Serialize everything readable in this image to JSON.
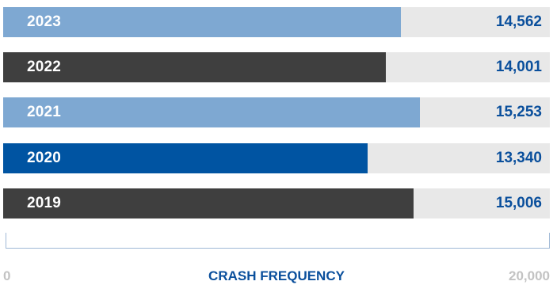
{
  "chart_data": {
    "type": "bar",
    "orientation": "horizontal",
    "categories": [
      "2023",
      "2022",
      "2021",
      "2020",
      "2019"
    ],
    "values": [
      14562,
      14001,
      15253,
      13340,
      15006
    ],
    "value_labels": [
      "14,562",
      "14,001",
      "15,253",
      "13,340",
      "15,006"
    ],
    "bar_colors": [
      "#7ea8d2",
      "#3f3f3f",
      "#7ea8d2",
      "#0054a2",
      "#3f3f3f"
    ],
    "track_color": "#e8e8e8",
    "value_color": "#0a4f9c",
    "xlim": [
      0,
      20000
    ],
    "xlabel": "CRASH FREQUENCY",
    "x_tick_labels": [
      "0",
      "20,000"
    ],
    "axis_color": "#9fb8d6",
    "axis_text_color": "#c3c3c3",
    "xlabel_color": "#0a4f9c",
    "grid": false,
    "legend": "none"
  }
}
